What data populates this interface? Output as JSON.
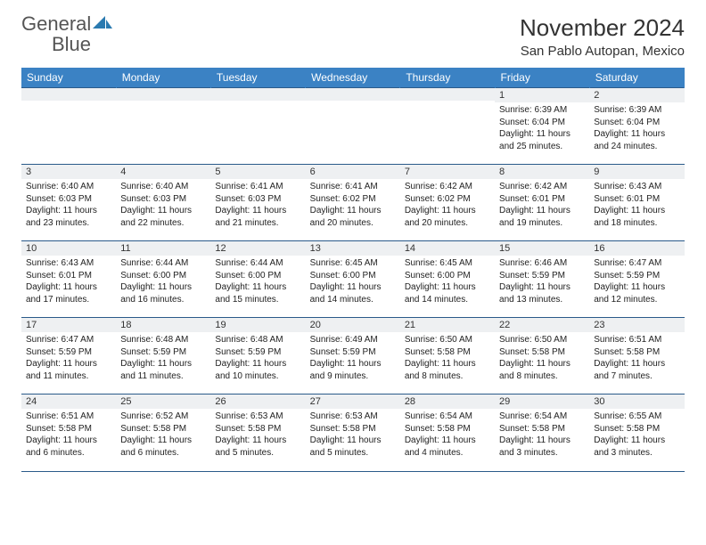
{
  "logo": {
    "text_gray": "General",
    "text_blue": "Blue",
    "shape_color": "#2a7ab0"
  },
  "header": {
    "month_title": "November 2024",
    "location": "San Pablo Autopan, Mexico"
  },
  "colors": {
    "header_bg": "#3b82c4",
    "header_text": "#ffffff",
    "rule": "#2a5a8a",
    "daynum_bg": "#eef0f2",
    "page_bg": "#ffffff",
    "text": "#222222"
  },
  "day_names": [
    "Sunday",
    "Monday",
    "Tuesday",
    "Wednesday",
    "Thursday",
    "Friday",
    "Saturday"
  ],
  "weeks": [
    [
      null,
      null,
      null,
      null,
      null,
      {
        "n": "1",
        "sunrise": "6:39 AM",
        "sunset": "6:04 PM",
        "daylight": "11 hours and 25 minutes."
      },
      {
        "n": "2",
        "sunrise": "6:39 AM",
        "sunset": "6:04 PM",
        "daylight": "11 hours and 24 minutes."
      }
    ],
    [
      {
        "n": "3",
        "sunrise": "6:40 AM",
        "sunset": "6:03 PM",
        "daylight": "11 hours and 23 minutes."
      },
      {
        "n": "4",
        "sunrise": "6:40 AM",
        "sunset": "6:03 PM",
        "daylight": "11 hours and 22 minutes."
      },
      {
        "n": "5",
        "sunrise": "6:41 AM",
        "sunset": "6:03 PM",
        "daylight": "11 hours and 21 minutes."
      },
      {
        "n": "6",
        "sunrise": "6:41 AM",
        "sunset": "6:02 PM",
        "daylight": "11 hours and 20 minutes."
      },
      {
        "n": "7",
        "sunrise": "6:42 AM",
        "sunset": "6:02 PM",
        "daylight": "11 hours and 20 minutes."
      },
      {
        "n": "8",
        "sunrise": "6:42 AM",
        "sunset": "6:01 PM",
        "daylight": "11 hours and 19 minutes."
      },
      {
        "n": "9",
        "sunrise": "6:43 AM",
        "sunset": "6:01 PM",
        "daylight": "11 hours and 18 minutes."
      }
    ],
    [
      {
        "n": "10",
        "sunrise": "6:43 AM",
        "sunset": "6:01 PM",
        "daylight": "11 hours and 17 minutes."
      },
      {
        "n": "11",
        "sunrise": "6:44 AM",
        "sunset": "6:00 PM",
        "daylight": "11 hours and 16 minutes."
      },
      {
        "n": "12",
        "sunrise": "6:44 AM",
        "sunset": "6:00 PM",
        "daylight": "11 hours and 15 minutes."
      },
      {
        "n": "13",
        "sunrise": "6:45 AM",
        "sunset": "6:00 PM",
        "daylight": "11 hours and 14 minutes."
      },
      {
        "n": "14",
        "sunrise": "6:45 AM",
        "sunset": "6:00 PM",
        "daylight": "11 hours and 14 minutes."
      },
      {
        "n": "15",
        "sunrise": "6:46 AM",
        "sunset": "5:59 PM",
        "daylight": "11 hours and 13 minutes."
      },
      {
        "n": "16",
        "sunrise": "6:47 AM",
        "sunset": "5:59 PM",
        "daylight": "11 hours and 12 minutes."
      }
    ],
    [
      {
        "n": "17",
        "sunrise": "6:47 AM",
        "sunset": "5:59 PM",
        "daylight": "11 hours and 11 minutes."
      },
      {
        "n": "18",
        "sunrise": "6:48 AM",
        "sunset": "5:59 PM",
        "daylight": "11 hours and 11 minutes."
      },
      {
        "n": "19",
        "sunrise": "6:48 AM",
        "sunset": "5:59 PM",
        "daylight": "11 hours and 10 minutes."
      },
      {
        "n": "20",
        "sunrise": "6:49 AM",
        "sunset": "5:59 PM",
        "daylight": "11 hours and 9 minutes."
      },
      {
        "n": "21",
        "sunrise": "6:50 AM",
        "sunset": "5:58 PM",
        "daylight": "11 hours and 8 minutes."
      },
      {
        "n": "22",
        "sunrise": "6:50 AM",
        "sunset": "5:58 PM",
        "daylight": "11 hours and 8 minutes."
      },
      {
        "n": "23",
        "sunrise": "6:51 AM",
        "sunset": "5:58 PM",
        "daylight": "11 hours and 7 minutes."
      }
    ],
    [
      {
        "n": "24",
        "sunrise": "6:51 AM",
        "sunset": "5:58 PM",
        "daylight": "11 hours and 6 minutes."
      },
      {
        "n": "25",
        "sunrise": "6:52 AM",
        "sunset": "5:58 PM",
        "daylight": "11 hours and 6 minutes."
      },
      {
        "n": "26",
        "sunrise": "6:53 AM",
        "sunset": "5:58 PM",
        "daylight": "11 hours and 5 minutes."
      },
      {
        "n": "27",
        "sunrise": "6:53 AM",
        "sunset": "5:58 PM",
        "daylight": "11 hours and 5 minutes."
      },
      {
        "n": "28",
        "sunrise": "6:54 AM",
        "sunset": "5:58 PM",
        "daylight": "11 hours and 4 minutes."
      },
      {
        "n": "29",
        "sunrise": "6:54 AM",
        "sunset": "5:58 PM",
        "daylight": "11 hours and 3 minutes."
      },
      {
        "n": "30",
        "sunrise": "6:55 AM",
        "sunset": "5:58 PM",
        "daylight": "11 hours and 3 minutes."
      }
    ]
  ],
  "labels": {
    "sunrise_prefix": "Sunrise: ",
    "sunset_prefix": "Sunset: ",
    "daylight_prefix": "Daylight: "
  }
}
